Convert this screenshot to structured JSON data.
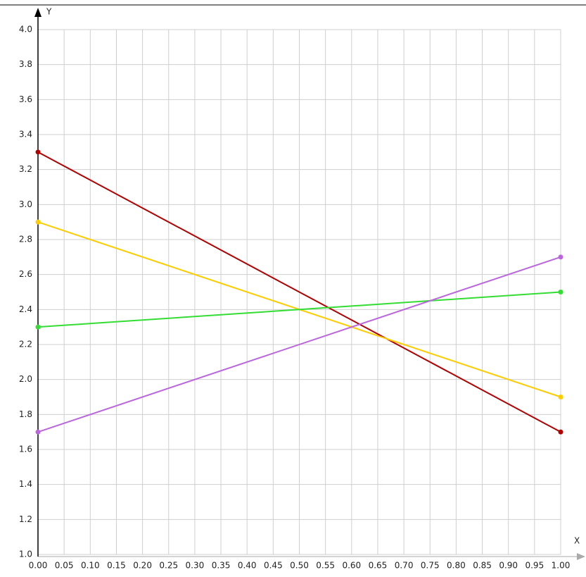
{
  "chart_data": {
    "type": "line",
    "x_label": "X",
    "y_label": "Y",
    "x": [
      0,
      1
    ],
    "series": [
      {
        "color": "#b30000",
        "values": [
          3.3,
          1.7
        ]
      },
      {
        "color": "#ffcc00",
        "values": [
          2.9,
          1.9
        ]
      },
      {
        "color": "#33dd33",
        "values": [
          2.3,
          2.5
        ]
      },
      {
        "color": "#bb66e0",
        "values": [
          1.7,
          2.7
        ]
      }
    ],
    "xlim": [
      0,
      1
    ],
    "xticks": [
      {
        "value": 0,
        "label": "0.00"
      },
      {
        "value": 0.05,
        "label": "0.05"
      },
      {
        "value": 0.1,
        "label": "0.10"
      },
      {
        "value": 0.15,
        "label": "0.15"
      },
      {
        "value": 0.2,
        "label": "0.20"
      },
      {
        "value": 0.25,
        "label": "0.25"
      },
      {
        "value": 0.3,
        "label": "0.30"
      },
      {
        "value": 0.35,
        "label": "0.35"
      },
      {
        "value": 0.4,
        "label": "0.40"
      },
      {
        "value": 0.45,
        "label": "0.45"
      },
      {
        "value": 0.5,
        "label": "0.50"
      },
      {
        "value": 0.55,
        "label": "0.55"
      },
      {
        "value": 0.6,
        "label": "0.60"
      },
      {
        "value": 0.65,
        "label": "0.65"
      },
      {
        "value": 0.7,
        "label": "0.70"
      },
      {
        "value": 0.75,
        "label": "0.75"
      },
      {
        "value": 0.8,
        "label": "0.80"
      },
      {
        "value": 0.85,
        "label": "0.85"
      },
      {
        "value": 0.9,
        "label": "0.90"
      },
      {
        "value": 0.95,
        "label": "0.95"
      },
      {
        "value": 1,
        "label": "1.00"
      }
    ],
    "ylim": [
      1,
      4
    ],
    "yticks": [
      {
        "value": 1,
        "label": "1.0"
      },
      {
        "value": 1.2,
        "label": "1.2"
      },
      {
        "value": 1.4,
        "label": "1.4"
      },
      {
        "value": 1.6,
        "label": "1.6"
      },
      {
        "value": 1.8,
        "label": "1.8"
      },
      {
        "value": 2,
        "label": "2.0"
      },
      {
        "value": 2.2,
        "label": "2.2"
      },
      {
        "value": 2.4,
        "label": "2.4"
      },
      {
        "value": 2.6,
        "label": "2.6"
      },
      {
        "value": 2.8,
        "label": "2.8"
      },
      {
        "value": 3,
        "label": "3.0"
      },
      {
        "value": 3.2,
        "label": "3.2"
      },
      {
        "value": 3.4,
        "label": "3.4"
      },
      {
        "value": 3.6,
        "label": "3.6"
      },
      {
        "value": 3.8,
        "label": "3.8"
      },
      {
        "value": 4,
        "label": "4.0"
      }
    ],
    "grid": true
  }
}
